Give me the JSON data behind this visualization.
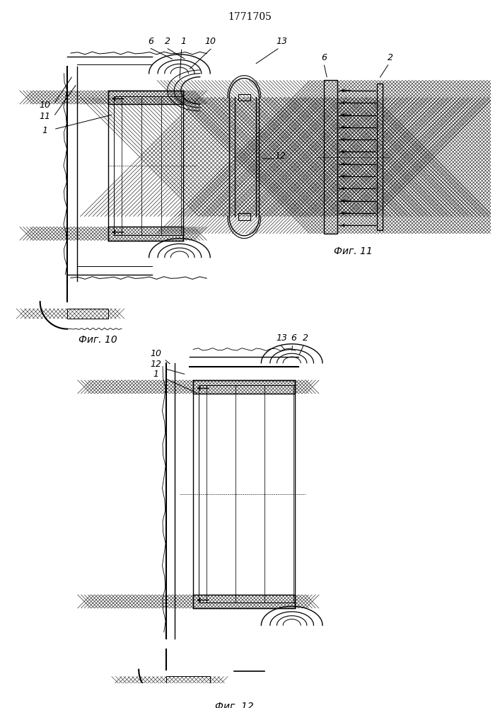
{
  "title": "1771705",
  "fig10_label": "Фиг. 10",
  "fig11_label": "Фиг. 11",
  "fig12_label": "Фиг. 12",
  "bg_color": "#ffffff",
  "line_color": "#000000"
}
